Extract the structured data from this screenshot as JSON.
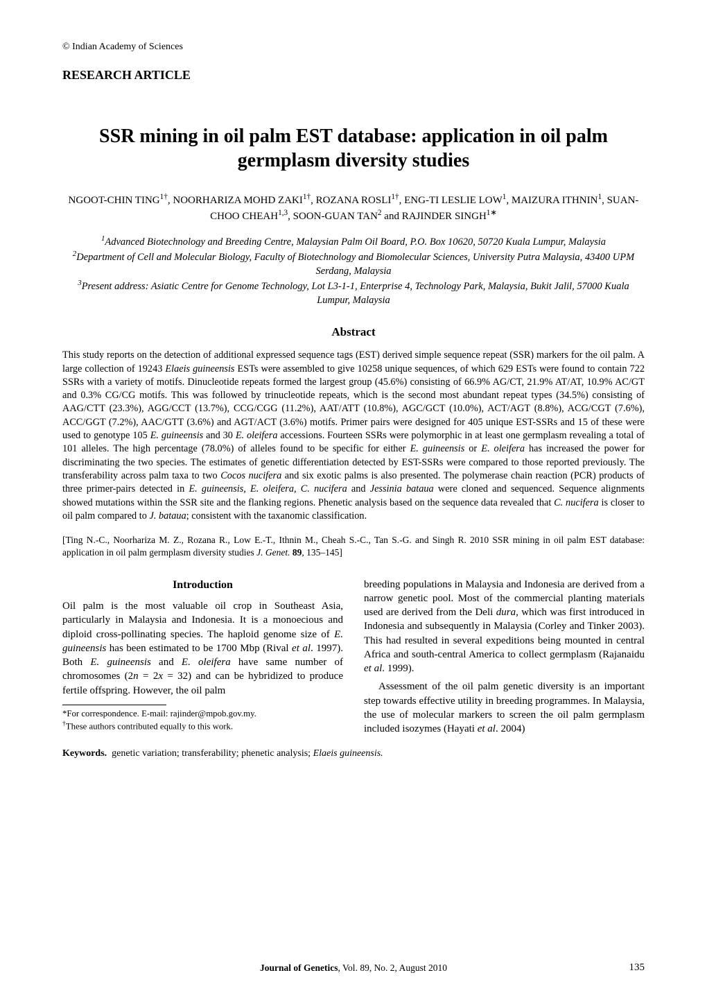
{
  "copyright": "© Indian Academy of Sciences",
  "article_type": "RESEARCH ARTICLE",
  "title": "SSR mining in oil palm EST database: application in oil palm germplasm diversity studies",
  "authors_html": "NGOOT-CHIN TING<sup>1†</sup>, NOORHARIZA MOHD ZAKI<sup>1†</sup>, ROZANA ROSLI<sup>1†</sup>, ENG-TI LESLIE LOW<sup>1</sup>, MAIZURA ITHNIN<sup>1</sup>, SUAN-CHOO CHEAH<sup>1,3</sup>, SOON-GUAN TAN<sup>2</sup> and RAJINDER SINGH<sup>1∗</sup>",
  "affiliations_html": "<sup>1</sup>Advanced Biotechnology and Breeding Centre, Malaysian Palm Oil Board, P.O. Box 10620, 50720 Kuala Lumpur, Malaysia<br><sup>2</sup>Department of Cell and Molecular Biology, Faculty of Biotechnology and Biomolecular Sciences, University Putra Malaysia, 43400 UPM Serdang, Malaysia<br><sup>3</sup>Present address: Asiatic Centre for Genome Technology, Lot L3-1-1, Enterprise 4, Technology Park, Malaysia, Bukit Jalil, 57000 Kuala Lumpur, Malaysia",
  "abstract_heading": "Abstract",
  "abstract_body_html": "This study reports on the detection of additional expressed sequence tags (EST) derived simple sequence repeat (SSR) markers for the oil palm. A large collection of 19243 <i>Elaeis guineensis</i> ESTs were assembled to give 10258 unique sequences, of which 629 ESTs were found to contain 722 SSRs with a variety of motifs. Dinucleotide repeats formed the largest group (45.6%) consisting of 66.9% AG/CT, 21.9% AT/AT, 10.9% AC/GT and 0.3% CG/CG motifs. This was followed by trinucleotide repeats, which is the second most abundant repeat types (34.5%) consisting of AAG/CTT (23.3%), AGG/CCT (13.7%), CCG/CGG (11.2%), AAT/ATT (10.8%), AGC/GCT (10.0%), ACT/AGT (8.8%), ACG/CGT (7.6%), ACC/GGT (7.2%), AAC/GTT (3.6%) and AGT/ACT (3.6%) motifs. Primer pairs were designed for 405 unique EST-SSRs and 15 of these were used to genotype 105 <i>E. guineensis</i> and 30 <i>E. oleifera</i> accessions. Fourteen SSRs were polymorphic in at least one germplasm revealing a total of 101 alleles. The high percentage (78.0%) of alleles found to be specific for either <i>E. guineensis</i> or <i>E. oleifera</i> has increased the power for discriminating the two species. The estimates of genetic differentiation detected by EST-SSRs were compared to those reported previously. The transferability across palm taxa to two <i>Cocos nucifera</i> and six exotic palms is also presented. The polymerase chain reaction (PCR) products of three primer-pairs detected in <i>E. guineensis, E. oleifera, C. nucifera</i> and <i>Jessinia bataua</i> were cloned and sequenced. Sequence alignments showed mutations within the SSR site and the flanking regions. Phenetic analysis based on the sequence data revealed that <i>C. nucifera</i> is closer to oil palm compared to <i>J. bataua</i>; consistent with the taxanomic classification.",
  "citation_html": "[Ting N.-C., Noorhariza M. Z., Rozana R., Low E.-T., Ithnin M., Cheah S.-C., Tan S.-G. and Singh R. 2010 SSR mining in oil palm EST database: application in oil palm germplasm diversity studies <i>J. Genet.</i> <b>89</b>, 135–145]",
  "intro_heading": "Introduction",
  "intro_para1_html": "Oil palm is the most valuable oil crop in Southeast Asia, particularly in Malaysia and Indonesia. It is a monoecious and diploid cross-pollinating species. The haploid genome size of <i>E. guineensis</i> has been estimated to be 1700 Mbp (Rival <i>et al</i>. 1997). Both <i>E. guineensis</i> and <i>E. oleifera</i> have same number of chromosomes (2<i>n</i> = 2<i>x</i> = 32) and can be hybridized to produce fertile offspring. However, the oil palm",
  "intro_para1b_html": "breeding populations in Malaysia and Indonesia are derived from a narrow genetic pool. Most of the commercial planting materials used are derived from the Deli <i>dura</i>, which was first introduced in Indonesia and subsequently in Malaysia (Corley and Tinker 2003). This had resulted in several expeditions being mounted in central Africa and south-central America to collect germplasm (Rajanaidu <i>et al</i>. 1999).",
  "intro_para2_html": "Assessment of the oil palm genetic diversity is an important step towards effective utility in breeding programmes. In Malaysia, the use of molecular markers to screen the oil palm germplasm included isozymes (Hayati <i>et al</i>. 2004)",
  "footnote_correspondence": "*For correspondence. E-mail: rajinder@mpob.gov.my.",
  "footnote_equal": "†These authors contributed equally to this work.",
  "keywords_html": "<b>Keywords.</b>&nbsp;&nbsp;genetic variation; transferability; phenetic analysis; <i>Elaeis guineensis.</i>",
  "footer_center_html": "<b>Journal of Genetics</b>, Vol. 89, No. 2, August 2010",
  "footer_page": "135"
}
